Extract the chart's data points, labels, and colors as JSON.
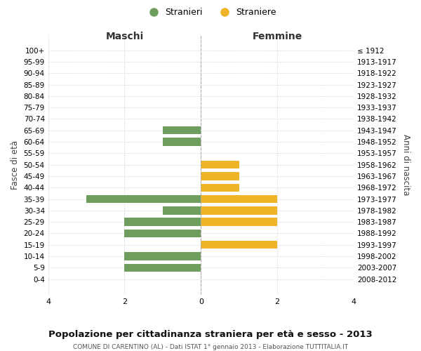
{
  "age_groups": [
    "100+",
    "95-99",
    "90-94",
    "85-89",
    "80-84",
    "75-79",
    "70-74",
    "65-69",
    "60-64",
    "55-59",
    "50-54",
    "45-49",
    "40-44",
    "35-39",
    "30-34",
    "25-29",
    "20-24",
    "15-19",
    "10-14",
    "5-9",
    "0-4"
  ],
  "birth_years": [
    "≤ 1912",
    "1913-1917",
    "1918-1922",
    "1923-1927",
    "1928-1932",
    "1933-1937",
    "1938-1942",
    "1943-1947",
    "1948-1952",
    "1953-1957",
    "1958-1962",
    "1963-1967",
    "1968-1972",
    "1973-1977",
    "1978-1982",
    "1983-1987",
    "1988-1992",
    "1993-1997",
    "1998-2002",
    "2003-2007",
    "2008-2012"
  ],
  "maschi": [
    0,
    0,
    0,
    0,
    0,
    0,
    0,
    1,
    1,
    0,
    0,
    0,
    0,
    3,
    1,
    2,
    2,
    0,
    2,
    2,
    0
  ],
  "femmine": [
    0,
    0,
    0,
    0,
    0,
    0,
    0,
    0,
    0,
    0,
    1,
    1,
    1,
    2,
    2,
    2,
    0,
    2,
    0,
    0,
    0
  ],
  "maschi_color": "#6e9e5e",
  "femmine_color": "#f0b429",
  "title": "Popolazione per cittadinanza straniera per età e sesso - 2013",
  "subtitle": "COMUNE DI CARENTINO (AL) - Dati ISTAT 1° gennaio 2013 - Elaborazione TUTTITALIA.IT",
  "xlabel_left": "Maschi",
  "xlabel_right": "Femmine",
  "ylabel_left": "Fasce di età",
  "ylabel_right": "Anni di nascita",
  "legend_stranieri": "Stranieri",
  "legend_straniere": "Straniere",
  "xlim": 4,
  "background_color": "#ffffff",
  "grid_color": "#cccccc"
}
